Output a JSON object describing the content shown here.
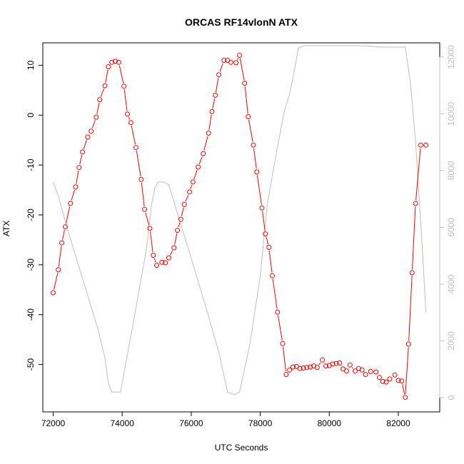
{
  "chart_data": {
    "type": "line",
    "title": "ORCAS RF14vlonN ATX",
    "xlabel": "UTC Seconds",
    "ylabel": "ATX",
    "xlim": [
      71700,
      83200
    ],
    "ylim": [
      -59.5,
      14.5
    ],
    "y2lim": [
      -500,
      12500
    ],
    "x_ticks": [
      "72000",
      "74000",
      "76000",
      "78000",
      "80000",
      "82000"
    ],
    "y_ticks": [
      "-50",
      "-40",
      "-30",
      "-20",
      "-10",
      "0",
      "10"
    ],
    "y2_ticks": [
      "0",
      "2000",
      "4000",
      "6000",
      "8000",
      "10000",
      "12000"
    ],
    "grid": false,
    "legend": "none",
    "series": [
      {
        "color": "#ff0000",
        "marker": "open-circle",
        "axis": "left",
        "x": [
          72000,
          72150,
          72250,
          72350,
          72500,
          72650,
          72750,
          72850,
          73000,
          73100,
          73250,
          73350,
          73500,
          73600,
          73700,
          73800,
          73900,
          74050,
          74150,
          74250,
          74400,
          74550,
          74650,
          74800,
          74900,
          75000,
          75150,
          75250,
          75350,
          75500,
          75600,
          75700,
          75800,
          75950,
          76050,
          76200,
          76350,
          76500,
          76600,
          76700,
          76800,
          76950,
          77050,
          77150,
          77300,
          77400,
          77550,
          77650,
          77800,
          77900,
          78050,
          78150,
          78250,
          78350,
          78500,
          78650,
          78750,
          78850,
          78950,
          79050,
          79150,
          79250,
          79350,
          79450,
          79550,
          79650,
          79800,
          79900,
          80000,
          80100,
          80200,
          80300,
          80400,
          80500,
          80600,
          80750,
          80850,
          80950,
          81050,
          81200,
          81350,
          81450,
          81550,
          81650,
          81750,
          81900,
          82000,
          82100,
          82200,
          82300,
          82400,
          82500,
          82650,
          82800
        ],
        "values": [
          -35.6,
          -31.0,
          -25.6,
          -22.4,
          -17.7,
          -14.4,
          -10.5,
          -7.4,
          -4.4,
          -3.2,
          -0.4,
          3.1,
          5.9,
          9.7,
          10.6,
          10.8,
          10.6,
          5.8,
          0.2,
          -1.5,
          -6.5,
          -12.9,
          -18.9,
          -22.7,
          -28.1,
          -30.1,
          -29.5,
          -29.6,
          -28.6,
          -26.6,
          -23.1,
          -20.9,
          -17.9,
          -15.4,
          -13.4,
          -10.4,
          -7.7,
          -3.6,
          0.7,
          4.0,
          8.1,
          11.0,
          11.0,
          10.6,
          10.5,
          12.0,
          6.4,
          -0.3,
          -6.0,
          -11.4,
          -18.6,
          -23.8,
          -26.5,
          -32.2,
          -39.5,
          -45.8,
          -52.0,
          -51.1,
          -50.5,
          -50.4,
          -50.8,
          -50.7,
          -50.6,
          -50.5,
          -50.3,
          -50.6,
          -49.1,
          -50.3,
          -50.2,
          -49.9,
          -49.8,
          -49.7,
          -50.9,
          -51.3,
          -50.1,
          -51.3,
          -50.8,
          -51.1,
          -52.0,
          -51.4,
          -51.5,
          -52.6,
          -53.4,
          -53.5,
          -52.9,
          -52.1,
          -53.2,
          -53.3,
          -56.6,
          -45.9,
          -31.6,
          -17.7,
          -6.0,
          -6.0
        ]
      },
      {
        "color": "#bebebe",
        "marker": "none",
        "axis": "right",
        "x": [
          72000,
          72150,
          72400,
          72700,
          73000,
          73300,
          73500,
          73600,
          73700,
          73950,
          74300,
          74700,
          74850,
          74950,
          75050,
          75200,
          75350,
          75600,
          76000,
          76400,
          76800,
          77050,
          77250,
          77400,
          77700,
          78000,
          78200,
          78450,
          78700,
          78850,
          79000,
          79100,
          79250,
          79600,
          80000,
          80500,
          81000,
          81500,
          82000,
          82200,
          82350,
          82500,
          82700,
          82800
        ],
        "values": [
          7600,
          7100,
          6000,
          4800,
          3600,
          2400,
          1400,
          500,
          200,
          200,
          2500,
          5200,
          6800,
          7400,
          7600,
          7600,
          7500,
          6500,
          4900,
          3300,
          1600,
          200,
          100,
          200,
          1900,
          4300,
          6800,
          8500,
          10100,
          10700,
          11600,
          12300,
          12400,
          12400,
          12400,
          12400,
          12400,
          12350,
          12350,
          12350,
          11100,
          9000,
          5200,
          3000
        ]
      }
    ]
  }
}
